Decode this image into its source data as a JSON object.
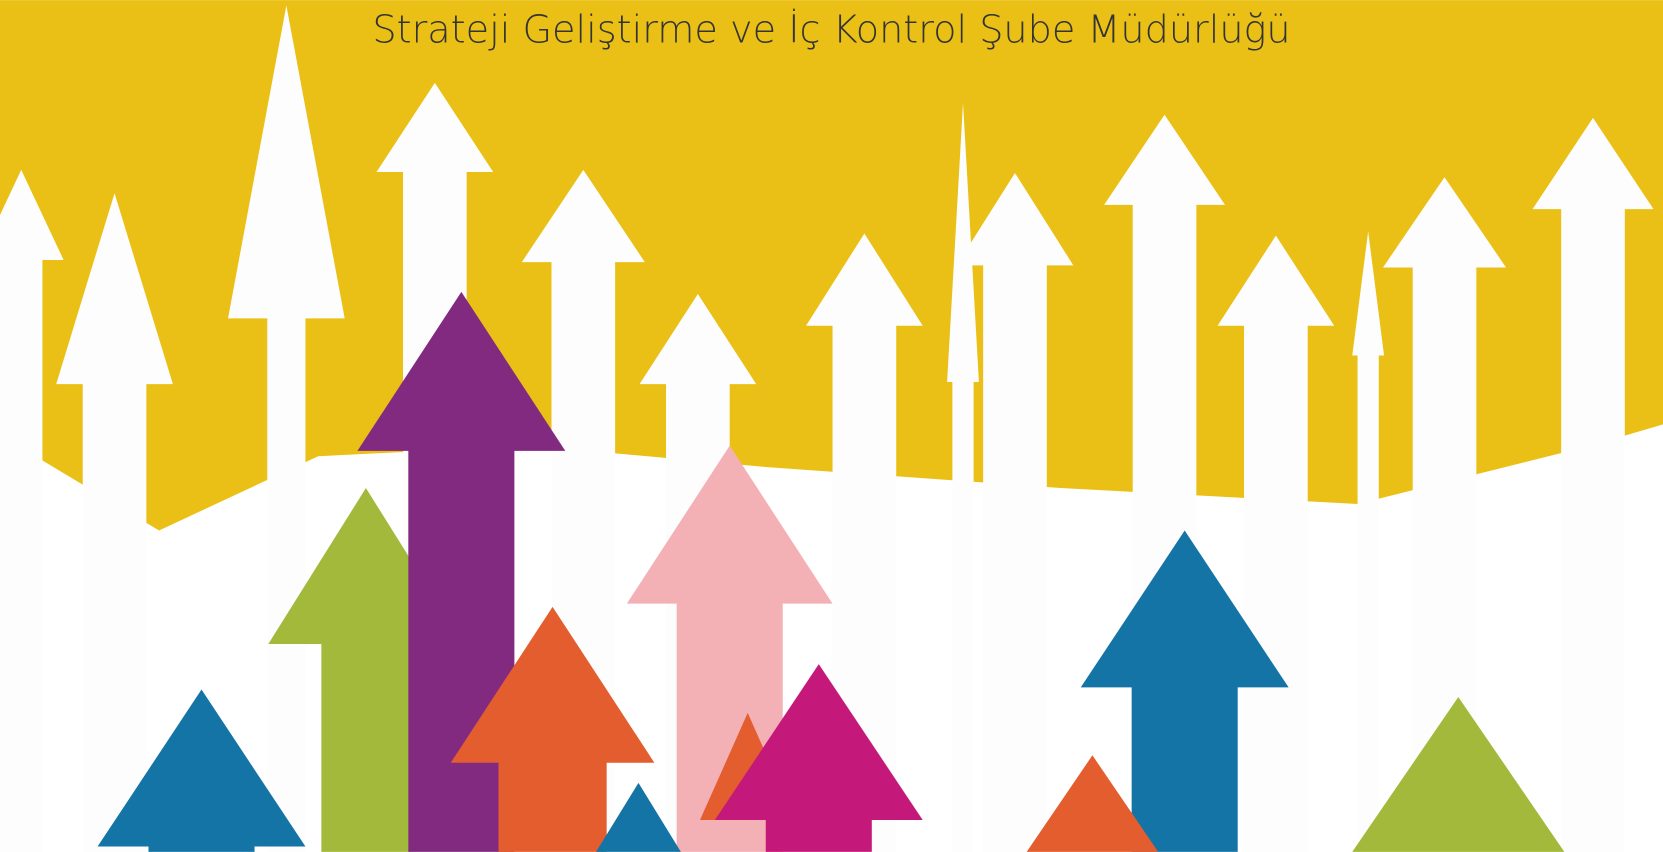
{
  "title": "Strateji Geliştirme ve İç Kontrol Şube Müdürlüğü"
}
